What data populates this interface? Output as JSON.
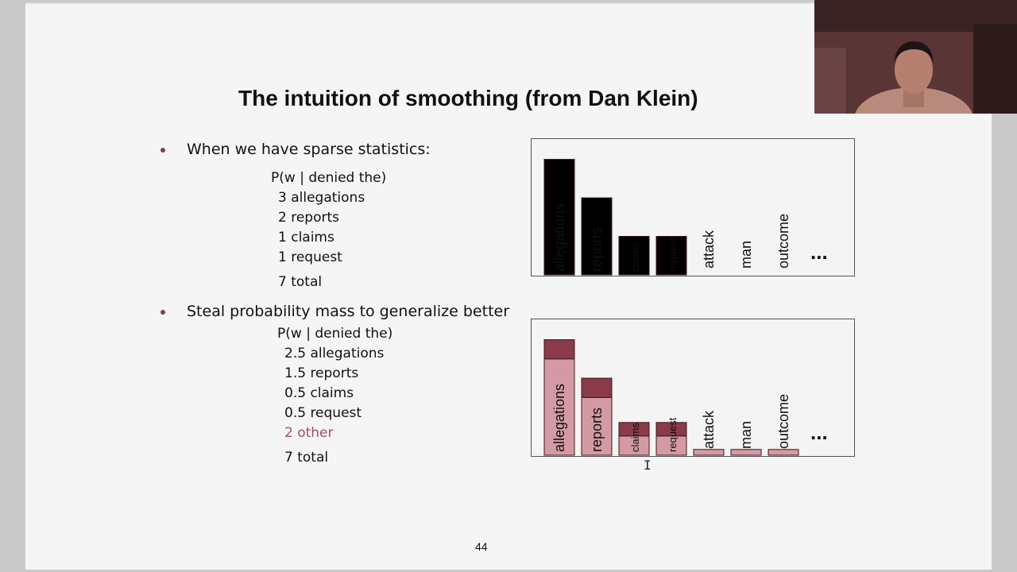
{
  "slide": {
    "title": "The intuition of smoothing (from Dan Klein)",
    "page_number": "44",
    "section1": {
      "bullet": "When we have sparse statistics:",
      "header": "P(w | denied the)",
      "lines": [
        "3 allegations",
        "2 reports",
        "1 claims",
        "1 request"
      ],
      "total": "7 total"
    },
    "section2": {
      "bullet": "Steal probability mass to generalize better",
      "header": "P(w | denied the)",
      "lines": [
        "2.5 allegations",
        "1.5 reports",
        "0.5 claims",
        "0.5 request"
      ],
      "other": "2 other",
      "total": "7 total"
    }
  },
  "chart_data": [
    {
      "type": "bar",
      "categories": [
        "allegations",
        "reports",
        "claims",
        "request",
        "attack",
        "man",
        "outcome"
      ],
      "values": [
        3,
        2,
        1,
        1,
        0,
        0,
        0
      ],
      "ellipsis": "...",
      "ylim": [
        0,
        3.3
      ],
      "colors": {
        "bar": "#8b3a4a",
        "border": "#3a1a20"
      }
    },
    {
      "type": "bar",
      "stacked": true,
      "categories": [
        "allegations",
        "reports",
        "claims",
        "request",
        "attack",
        "man",
        "outcome"
      ],
      "series": [
        {
          "values": [
            2.5,
            1.5,
            0.5,
            0.5,
            0.15,
            0.15,
            0.15
          ]
        },
        {
          "values": [
            0.5,
            0.5,
            0.35,
            0.35,
            0,
            0,
            0
          ]
        }
      ],
      "ellipsis": "...",
      "ylim": [
        0,
        3.3
      ],
      "colors": {
        "light": "#d49aa4",
        "dark": "#8b3a4a",
        "border": "#3a1a20"
      }
    }
  ],
  "overlay": {
    "cursor_glyph": "I"
  },
  "colors": {
    "accent": "#8b3a4a",
    "slide_bg": "#f5f5f5",
    "outer_bg": "#c9c9c9"
  }
}
